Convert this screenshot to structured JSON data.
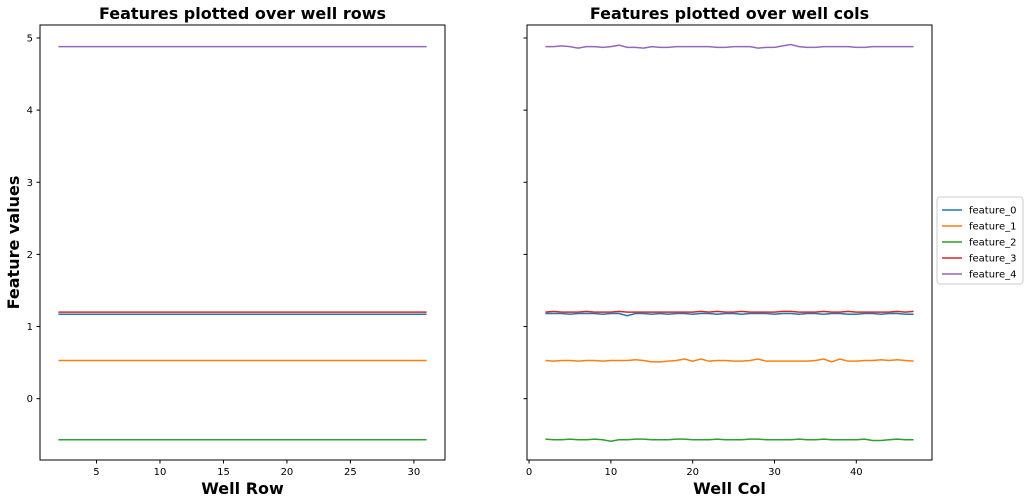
{
  "chart_data": [
    {
      "type": "line",
      "title": "Features plotted over well rows",
      "xlabel": "Well Row",
      "ylabel": "Feature values",
      "xlim": [
        0.55,
        32.45
      ],
      "ylim": [
        -0.85,
        5.18
      ],
      "xticks": [
        5,
        10,
        15,
        20,
        25,
        30
      ],
      "yticks": [
        0,
        1,
        2,
        3,
        4,
        5
      ],
      "grid": false,
      "x_start": 2,
      "x_end": 31,
      "series": [
        {
          "name": "feature_0",
          "color": "#1f77b4",
          "values": [
            1.17,
            1.17
          ]
        },
        {
          "name": "feature_1",
          "color": "#ff7f0e",
          "values": [
            0.53,
            0.53
          ]
        },
        {
          "name": "feature_2",
          "color": "#2ca02c",
          "values": [
            -0.57,
            -0.57
          ]
        },
        {
          "name": "feature_3",
          "color": "#d62728",
          "values": [
            1.2,
            1.2
          ]
        },
        {
          "name": "feature_4",
          "color": "#9467bd",
          "values": [
            4.88,
            4.88
          ]
        }
      ]
    },
    {
      "type": "line",
      "title": "Features plotted over well cols",
      "xlabel": "Well Col",
      "ylabel": "",
      "xlim": [
        -0.25,
        49.25
      ],
      "ylim": [
        -0.85,
        5.18
      ],
      "xticks": [
        0,
        10,
        20,
        30,
        40
      ],
      "yticks": [
        0,
        1,
        2,
        3,
        4,
        5
      ],
      "show_ytick_labels": false,
      "grid": false,
      "x_start": 2,
      "x_end": 47,
      "series": [
        {
          "name": "feature_0",
          "color": "#1f77b4",
          "values": [
            1.18,
            1.18,
            1.18,
            1.17,
            1.18,
            1.18,
            1.18,
            1.17,
            1.18,
            1.18,
            1.15,
            1.18,
            1.18,
            1.17,
            1.18,
            1.17,
            1.18,
            1.18,
            1.17,
            1.18,
            1.18,
            1.17,
            1.18,
            1.18,
            1.17,
            1.18,
            1.18,
            1.18,
            1.17,
            1.18,
            1.18,
            1.17,
            1.18,
            1.18,
            1.17,
            1.18,
            1.18,
            1.17,
            1.17,
            1.18,
            1.18,
            1.17,
            1.18,
            1.18,
            1.17,
            1.17
          ]
        },
        {
          "name": "feature_1",
          "color": "#ff7f0e",
          "values": [
            0.53,
            0.52,
            0.53,
            0.53,
            0.52,
            0.53,
            0.53,
            0.52,
            0.53,
            0.53,
            0.53,
            0.54,
            0.53,
            0.51,
            0.51,
            0.52,
            0.53,
            0.55,
            0.52,
            0.55,
            0.52,
            0.53,
            0.53,
            0.52,
            0.52,
            0.53,
            0.55,
            0.52,
            0.52,
            0.52,
            0.52,
            0.52,
            0.52,
            0.53,
            0.55,
            0.51,
            0.55,
            0.52,
            0.52,
            0.53,
            0.53,
            0.54,
            0.53,
            0.54,
            0.53,
            0.52
          ]
        },
        {
          "name": "feature_2",
          "color": "#2ca02c",
          "values": [
            -0.56,
            -0.57,
            -0.57,
            -0.56,
            -0.57,
            -0.57,
            -0.56,
            -0.57,
            -0.59,
            -0.57,
            -0.57,
            -0.56,
            -0.56,
            -0.57,
            -0.57,
            -0.57,
            -0.56,
            -0.56,
            -0.57,
            -0.57,
            -0.57,
            -0.56,
            -0.57,
            -0.57,
            -0.57,
            -0.56,
            -0.56,
            -0.57,
            -0.57,
            -0.57,
            -0.57,
            -0.56,
            -0.57,
            -0.57,
            -0.56,
            -0.57,
            -0.57,
            -0.57,
            -0.57,
            -0.56,
            -0.58,
            -0.58,
            -0.57,
            -0.56,
            -0.57,
            -0.57
          ]
        },
        {
          "name": "feature_3",
          "color": "#d62728",
          "values": [
            1.2,
            1.21,
            1.2,
            1.2,
            1.2,
            1.21,
            1.2,
            1.2,
            1.2,
            1.21,
            1.2,
            1.2,
            1.2,
            1.2,
            1.2,
            1.2,
            1.2,
            1.2,
            1.2,
            1.21,
            1.2,
            1.21,
            1.2,
            1.2,
            1.21,
            1.2,
            1.2,
            1.2,
            1.2,
            1.21,
            1.21,
            1.2,
            1.2,
            1.2,
            1.21,
            1.2,
            1.2,
            1.21,
            1.2,
            1.2,
            1.2,
            1.2,
            1.2,
            1.21,
            1.2,
            1.21
          ]
        },
        {
          "name": "feature_4",
          "color": "#9467bd",
          "values": [
            4.88,
            4.88,
            4.89,
            4.88,
            4.86,
            4.88,
            4.88,
            4.87,
            4.88,
            4.9,
            4.87,
            4.87,
            4.86,
            4.88,
            4.87,
            4.87,
            4.88,
            4.88,
            4.88,
            4.88,
            4.88,
            4.87,
            4.87,
            4.88,
            4.88,
            4.88,
            4.86,
            4.87,
            4.87,
            4.89,
            4.91,
            4.88,
            4.87,
            4.87,
            4.88,
            4.88,
            4.88,
            4.88,
            4.87,
            4.87,
            4.88,
            4.88,
            4.88,
            4.88,
            4.88,
            4.88
          ]
        }
      ]
    }
  ],
  "legend": {
    "placement": "right",
    "entries": [
      {
        "label": "feature_0",
        "color": "#1f77b4"
      },
      {
        "label": "feature_1",
        "color": "#ff7f0e"
      },
      {
        "label": "feature_2",
        "color": "#2ca02c"
      },
      {
        "label": "feature_3",
        "color": "#d62728"
      },
      {
        "label": "feature_4",
        "color": "#9467bd"
      }
    ]
  }
}
